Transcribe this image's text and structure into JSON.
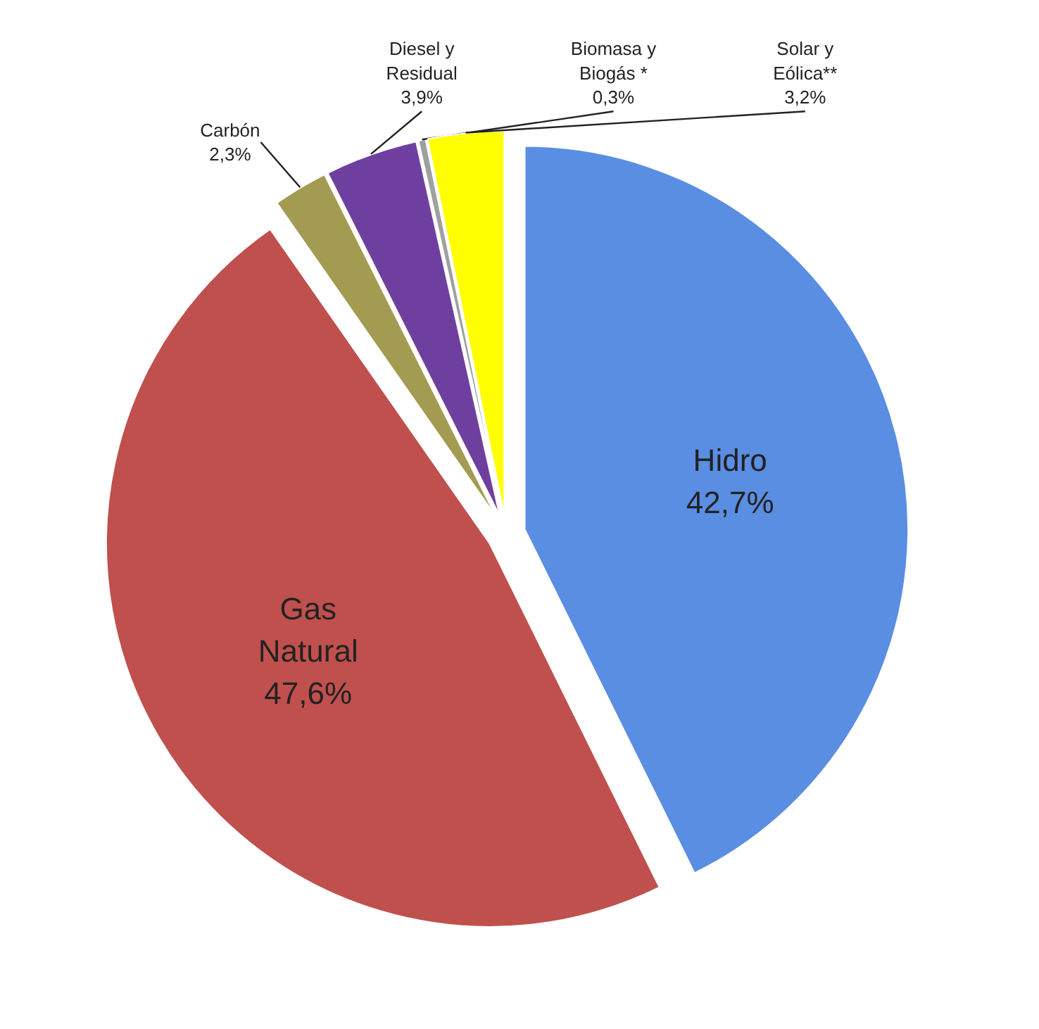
{
  "chart_data": {
    "type": "pie",
    "categories": [
      "Hidro",
      "Gas Natural",
      "Carbón",
      "Diesel y Residual",
      "Biomasa y Biogás *",
      "Solar y Eólica**"
    ],
    "values": [
      42.7,
      47.6,
      2.3,
      3.9,
      0.3,
      3.2
    ],
    "colors": [
      "#5a8ee3",
      "#c0504d",
      "#a39b52",
      "#6f3fa0",
      "#a0a0a0",
      "#ffff00"
    ],
    "value_labels": [
      "42,7%",
      "47,6%",
      "2,3%",
      "3,9%",
      "0,3%",
      "3,2%"
    ]
  }
}
